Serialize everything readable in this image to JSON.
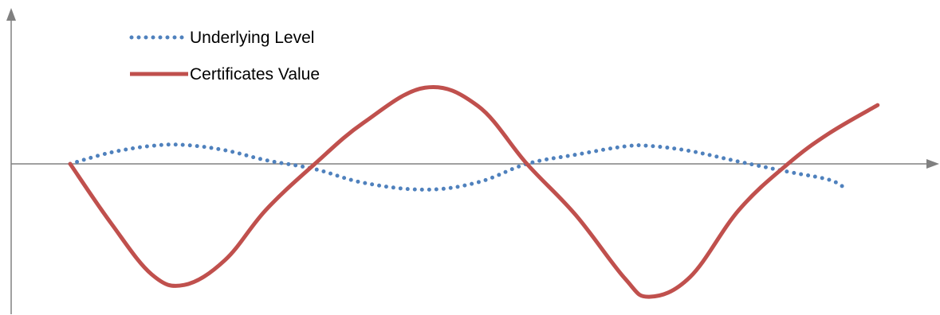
{
  "chart_data": {
    "type": "line",
    "title": "",
    "xlabel": "",
    "ylabel": "",
    "grid": false,
    "legend_position": "top-left",
    "xlim": [
      0,
      10
    ],
    "ylim": [
      -5.5,
      6.5
    ],
    "series": [
      {
        "name": "Underlying Level",
        "style": "dotted",
        "color": "#4f81bd",
        "points": [
          [
            0,
            0
          ],
          [
            0.5,
            0.62
          ],
          [
            1.0,
            0.98
          ],
          [
            1.4,
            1.03
          ],
          [
            1.9,
            0.74
          ],
          [
            2.4,
            0.2
          ],
          [
            3.0,
            -0.2
          ],
          [
            3.6,
            -0.72
          ],
          [
            4.35,
            -0.98
          ],
          [
            5.0,
            -0.7
          ],
          [
            5.6,
            0
          ],
          [
            6.2,
            0.5
          ],
          [
            6.8,
            0.95
          ],
          [
            7.1,
            0.98
          ],
          [
            7.6,
            0.7
          ],
          [
            8.2,
            0.12
          ],
          [
            8.8,
            -0.3
          ],
          [
            9.3,
            -0.6
          ],
          [
            9.5,
            -0.92
          ]
        ]
      },
      {
        "name": "Certificates Value",
        "style": "solid",
        "color": "#c0504d",
        "points": [
          [
            0,
            0
          ],
          [
            0.5,
            -2.25
          ],
          [
            1.0,
            -4.2
          ],
          [
            1.4,
            -4.6
          ],
          [
            1.9,
            -3.65
          ],
          [
            2.4,
            -1.75
          ],
          [
            3.0,
            0
          ],
          [
            3.6,
            2.25
          ],
          [
            4.35,
            4.15
          ],
          [
            5.0,
            3.15
          ],
          [
            5.6,
            0
          ],
          [
            6.2,
            -1.95
          ],
          [
            6.8,
            -4.35
          ],
          [
            7.1,
            -5.05
          ],
          [
            7.6,
            -4.3
          ],
          [
            8.2,
            -1.75
          ],
          [
            8.8,
            0
          ],
          [
            9.3,
            1.65
          ],
          [
            9.9,
            3.2
          ]
        ]
      }
    ],
    "legend": [
      {
        "name": "Underlying Level",
        "style": "dotted",
        "color": "#4f81bd"
      },
      {
        "name": "Certificates Value",
        "style": "solid",
        "color": "#c0504d"
      }
    ]
  },
  "colors": {
    "axis": "#808080",
    "underlying": "#4f81bd",
    "certificates": "#c0504d"
  }
}
